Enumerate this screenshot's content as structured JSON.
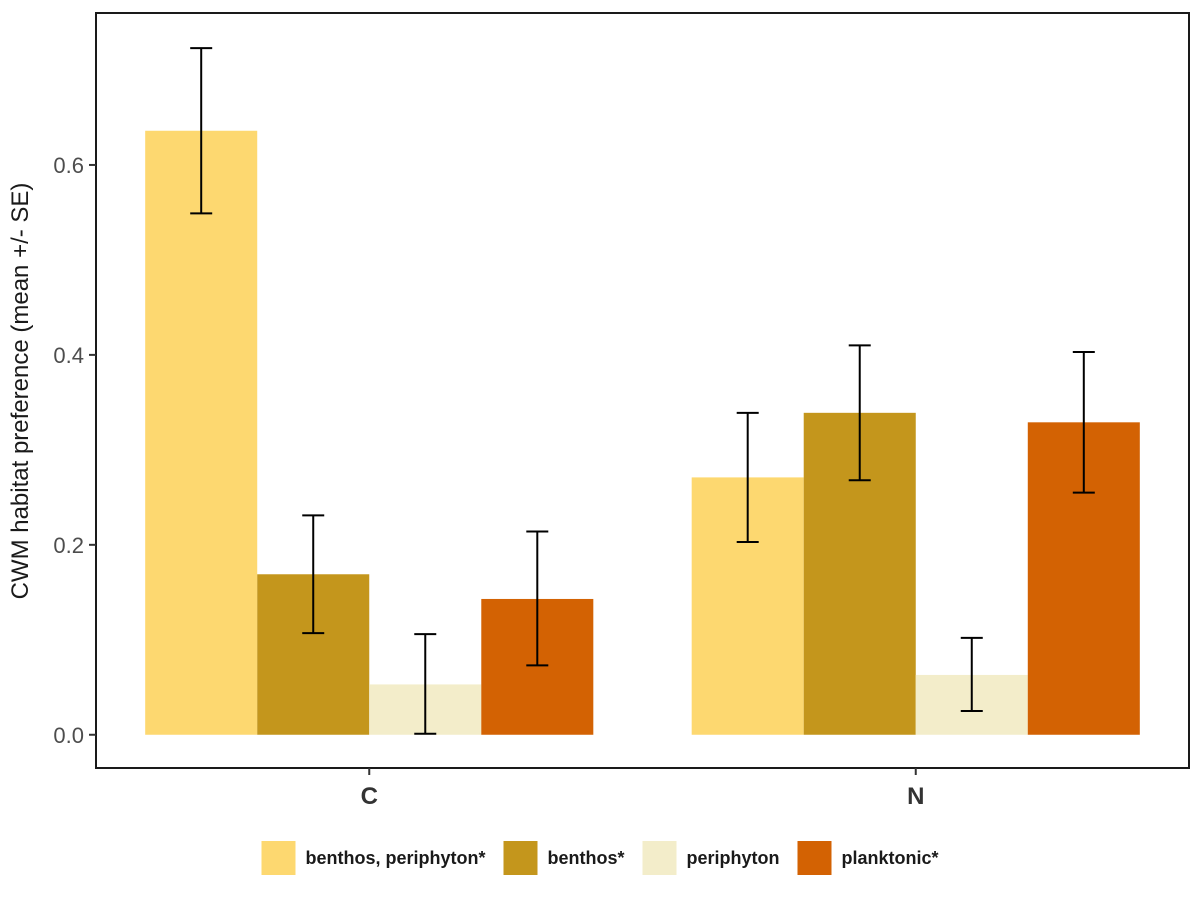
{
  "chart_data": {
    "type": "bar",
    "title": "",
    "xlabel": "",
    "ylabel": "CWM habitat preference (mean +/- SE)",
    "categories": [
      "C",
      "N"
    ],
    "ylim": [
      -0.035,
      0.76
    ],
    "yticks": [
      0.0,
      0.2,
      0.4,
      0.6
    ],
    "ytick_labels": [
      "0.0",
      "0.2",
      "0.4",
      "0.6"
    ],
    "grid": false,
    "legend_position": "bottom",
    "series": [
      {
        "name": "benthos, periphyton*",
        "color": "#FDD870",
        "values": [
          0.636,
          0.271
        ],
        "se_low": [
          0.549,
          0.203
        ],
        "se_high": [
          0.723,
          0.339
        ]
      },
      {
        "name": "benthos*",
        "color": "#C4961C",
        "values": [
          0.169,
          0.339
        ],
        "se_low": [
          0.107,
          0.268
        ],
        "se_high": [
          0.231,
          0.41
        ]
      },
      {
        "name": "periphyton",
        "color": "#F3EDCA",
        "values": [
          0.053,
          0.063
        ],
        "se_low": [
          0.001,
          0.025
        ],
        "se_high": [
          0.106,
          0.102
        ]
      },
      {
        "name": "planktonic*",
        "color": "#D36203",
        "values": [
          0.143,
          0.329
        ],
        "se_low": [
          0.073,
          0.255
        ],
        "se_high": [
          0.214,
          0.403
        ]
      }
    ]
  }
}
